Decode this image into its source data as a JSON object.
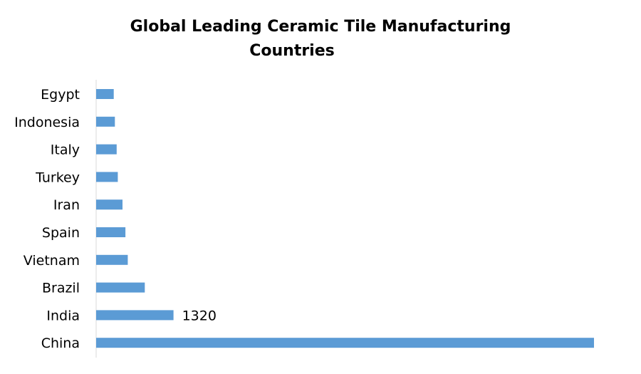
{
  "chart_data": {
    "type": "bar",
    "orientation": "horizontal",
    "title_lines": [
      "Global Leading Ceramic Tile Manufacturing",
      "Countries"
    ],
    "categories": [
      "Egypt",
      "Indonesia",
      "Italy",
      "Turkey",
      "Iran",
      "Spain",
      "Vietnam",
      "Brazil",
      "India",
      "China"
    ],
    "values": [
      300,
      320,
      350,
      370,
      450,
      500,
      540,
      830,
      1320,
      8500
    ],
    "data_labels": [
      {
        "category": "India",
        "text": "1320"
      }
    ],
    "xlim": [
      0,
      8500
    ],
    "grid": false,
    "legend": "none",
    "bar_color": "#5b9bd5"
  }
}
